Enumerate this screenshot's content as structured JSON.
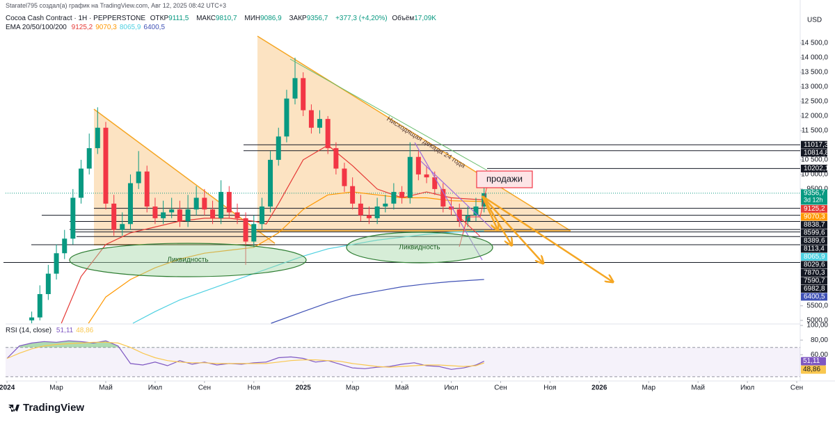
{
  "header": {
    "author_line": "Staratel795 создал(а) график на TradingView.com, Авг 12, 2025 08:42 UTC+3"
  },
  "chart_data": [
    {
      "type": "candlestick",
      "title": "Cocoa Cash Contract · 1H · PEPPERSTONE",
      "quote": [
        {
          "name": "ОТКР",
          "value": "9111,5"
        },
        {
          "name": "МАКС",
          "value": "9810,7"
        },
        {
          "name": "МИН",
          "value": "9086,9"
        },
        {
          "name": "ЗАКР",
          "value": "9356,7"
        }
      ],
      "change": "+377,3 (+4,20%)",
      "volume": {
        "name": "Объём",
        "value": "17,09K"
      },
      "indicator_label": "EMA 20/50/100/200",
      "currency": "USD",
      "up_color": "#089981",
      "down_color": "#f23645",
      "x": [
        1,
        1.33,
        1.67,
        2,
        2.33,
        2.67,
        3,
        3.33,
        3.67,
        4,
        4.33,
        4.67,
        5,
        5.33,
        5.67,
        6,
        6.33,
        6.67,
        7,
        7.33,
        7.67,
        8,
        8.33,
        8.67,
        9,
        9.33,
        9.67,
        10,
        10.33,
        10.67,
        11,
        11.33,
        11.67,
        12,
        12.33,
        12.67,
        13,
        13.33,
        13.67,
        14,
        14.33,
        14.67,
        15,
        15.33,
        15.67,
        16,
        16.33,
        16.67,
        17,
        17.33,
        17.67,
        18,
        18.33,
        18.67,
        19,
        19.33
      ],
      "open": [
        5000,
        5100,
        5900,
        6600,
        7300,
        7800,
        9200,
        10200,
        10900,
        11600,
        9000,
        8100,
        8300,
        9700,
        10100,
        8900,
        8500,
        8700,
        8800,
        8400,
        8800,
        9200,
        8800,
        8500,
        9400,
        8700,
        8500,
        7700,
        8300,
        8900,
        10500,
        11300,
        12600,
        13300,
        12200,
        11600,
        11900,
        10900,
        10200,
        9600,
        9000,
        8600,
        8500,
        8900,
        9000,
        9400,
        9200,
        10600,
        10000,
        9900,
        9500,
        8900,
        8800,
        8400,
        8600,
        8900
      ],
      "high": [
        5300,
        6200,
        6900,
        7600,
        8100,
        9500,
        10500,
        11400,
        12300,
        11800,
        9300,
        8700,
        10000,
        10800,
        10300,
        9200,
        9100,
        9200,
        9100,
        9300,
        9600,
        9500,
        9100,
        9800,
        9600,
        9000,
        8700,
        8600,
        9200,
        10800,
        11600,
        12900,
        14000,
        13500,
        12400,
        12200,
        12000,
        11100,
        10400,
        9900,
        9300,
        8900,
        9200,
        9300,
        9700,
        9600,
        11100,
        10800,
        10300,
        10100,
        9700,
        9200,
        9000,
        8900,
        9200,
        9600
      ],
      "low": [
        4900,
        5000,
        5700,
        6400,
        7100,
        7600,
        9000,
        10000,
        10700,
        8800,
        7900,
        7900,
        8100,
        9500,
        8700,
        8300,
        8300,
        8500,
        8200,
        8200,
        8600,
        8600,
        8300,
        8300,
        8500,
        8300,
        6900,
        7500,
        8100,
        8700,
        10300,
        11100,
        12400,
        12000,
        11400,
        11400,
        10700,
        10000,
        9400,
        8800,
        8400,
        8300,
        8300,
        8700,
        8800,
        9000,
        9000,
        9800,
        9700,
        9300,
        8700,
        8600,
        8200,
        8200,
        8400,
        8700
      ],
      "close": [
        5100,
        5900,
        6600,
        7300,
        7800,
        9200,
        10200,
        10900,
        11600,
        9000,
        8100,
        8300,
        9700,
        10100,
        8900,
        8500,
        8700,
        8800,
        8400,
        8800,
        9200,
        8800,
        8500,
        9400,
        8700,
        8500,
        7700,
        8300,
        8900,
        10500,
        11300,
        12600,
        13300,
        12200,
        11600,
        11900,
        10900,
        10200,
        9600,
        9000,
        8600,
        8500,
        8900,
        9000,
        9400,
        9200,
        10600,
        10000,
        9900,
        9500,
        8900,
        8800,
        8400,
        8600,
        8900,
        9356.7
      ],
      "series": [
        {
          "color": "#e53935",
          "x": [
            2.2,
            3,
            4,
            5,
            6,
            7,
            8,
            9,
            10,
            10.5,
            11,
            12,
            13,
            14,
            15,
            16,
            17,
            18,
            19.33
          ],
          "values": [
            4900,
            6500,
            7600,
            8000,
            8200,
            8400,
            8500,
            8500,
            8400,
            8300,
            9000,
            10500,
            11000,
            10300,
            9500,
            9200,
            9400,
            9200,
            9125.2
          ],
          "value_label": "9125,2"
        },
        {
          "color": "#ff9800",
          "x": [
            3.3,
            4,
            5,
            6,
            7,
            8,
            9,
            10,
            11,
            12,
            13,
            14,
            15,
            16,
            17,
            18,
            19.33
          ],
          "values": [
            4900,
            5800,
            6400,
            6800,
            7100,
            7300,
            7400,
            7500,
            8000,
            8800,
            9300,
            9400,
            9300,
            9200,
            9200,
            9100,
            9070.3
          ],
          "value_label": "9070,3"
        },
        {
          "color": "#4dd0e1",
          "x": [
            5.1,
            6,
            7,
            8,
            9,
            10,
            11,
            12,
            13,
            14,
            15,
            16,
            17,
            18,
            19.33
          ],
          "values": [
            4900,
            5300,
            5700,
            6000,
            6300,
            6600,
            6900,
            7200,
            7450,
            7600,
            7750,
            7850,
            7950,
            8020,
            8065.9
          ],
          "value_label": "8065,9"
        },
        {
          "color": "#3f51b5",
          "x": [
            10.7,
            12,
            13,
            14,
            15,
            16,
            17,
            18,
            19.33
          ],
          "values": [
            4900,
            5300,
            5600,
            5850,
            6000,
            6150,
            6250,
            6330,
            6400.5
          ],
          "value_label": "6400,5"
        }
      ],
      "last": {
        "value": 9356.7,
        "label": "9356,7",
        "countdown": "3d 12h",
        "color": "#089981"
      },
      "levels": [
        {
          "value": 11017.3,
          "label": "11017,3"
        },
        {
          "value": 10814.8,
          "label": "10814,8"
        },
        {
          "value": 10202.1,
          "label": "10202,1"
        },
        {
          "value": 8838.7,
          "label": "8838,7"
        },
        {
          "value": 8599.6,
          "label": "8599,6"
        },
        {
          "value": 8389.6,
          "label": "8389,6"
        },
        {
          "value": 8113.4,
          "label": "8113,4"
        },
        {
          "value": 8029.6,
          "label": "8029,6"
        },
        {
          "value": 7870.3,
          "label": "7870,3"
        },
        {
          "value": 7590.7,
          "label": "7590,7"
        },
        {
          "value": 6982.8,
          "label": "6982,8"
        }
      ],
      "xlim": [
        -0.06,
        32.14
      ],
      "xticks": [
        {
          "value": 0,
          "label": "2024"
        },
        {
          "value": 2,
          "label": "Мар"
        },
        {
          "value": 4,
          "label": "Май"
        },
        {
          "value": 6,
          "label": "Июл"
        },
        {
          "value": 8,
          "label": "Сен"
        },
        {
          "value": 10,
          "label": "Ноя"
        },
        {
          "value": 12,
          "label": "2025"
        },
        {
          "value": 14,
          "label": "Мар"
        },
        {
          "value": 16,
          "label": "Май"
        },
        {
          "value": 18,
          "label": "Июл"
        },
        {
          "value": 20,
          "label": "Сен"
        },
        {
          "value": 22,
          "label": "Ноя"
        },
        {
          "value": 24,
          "label": "2026"
        },
        {
          "value": 26,
          "label": "Мар"
        },
        {
          "value": 28,
          "label": "Май"
        },
        {
          "value": 30,
          "label": "Июл"
        },
        {
          "value": 32,
          "label": "Сен"
        }
      ],
      "ylim": [
        4900,
        15500
      ],
      "yticks": [
        {
          "value": 5000,
          "label": "5000,0"
        },
        {
          "value": 5500,
          "label": "5500,0"
        },
        {
          "value": 9500,
          "label": "9500,0"
        },
        {
          "value": 10000,
          "label": "10 000,0"
        },
        {
          "value": 10500,
          "label": "10 500,0"
        },
        {
          "value": 11500,
          "label": "11 500,0"
        },
        {
          "value": 12000,
          "label": "12 000,0"
        },
        {
          "value": 12500,
          "label": "12 500,0"
        },
        {
          "value": 13000,
          "label": "13 000,0"
        },
        {
          "value": 13500,
          "label": "13 500,0"
        },
        {
          "value": 14000,
          "label": "14 000,0"
        },
        {
          "value": 14500,
          "label": "14 500,0"
        }
      ]
    },
    {
      "type": "line",
      "title": "RSI (14, close)",
      "x": [
        0,
        0.5,
        1,
        1.5,
        2,
        2.5,
        3,
        3.5,
        4,
        4.5,
        5,
        5.5,
        6,
        6.5,
        7,
        7.5,
        8,
        8.5,
        9,
        9.5,
        10,
        10.5,
        11,
        11.5,
        12,
        12.5,
        13,
        13.5,
        14,
        14.5,
        15,
        15.5,
        16,
        16.5,
        17,
        17.5,
        18,
        18.5,
        19,
        19.33
      ],
      "series": [
        {
          "color": "#7e57c2",
          "values": [
            55,
            72,
            76,
            78,
            77,
            79,
            78,
            76,
            79,
            72,
            48,
            46,
            50,
            45,
            52,
            47,
            50,
            46,
            48,
            47,
            49,
            50,
            56,
            57,
            55,
            50,
            52,
            47,
            42,
            41,
            43,
            44,
            47,
            49,
            45,
            44,
            40,
            42,
            46,
            51.11
          ],
          "value_label": "51,11"
        },
        {
          "color": "#f9c74f",
          "values": [
            55,
            62,
            68,
            72,
            74,
            75,
            76,
            77,
            77,
            76,
            70,
            62,
            56,
            52,
            50,
            49,
            49,
            48,
            48,
            48,
            48,
            48,
            50,
            52,
            53,
            53,
            52,
            51,
            48,
            46,
            44,
            43,
            44,
            45,
            46,
            46,
            45,
            44,
            45,
            48.86
          ],
          "value_label": "48,86"
        }
      ],
      "bands": [
        70,
        30
      ],
      "overbought_color": "#4caf50",
      "ylim": [
        27,
        102
      ],
      "yticks": [
        {
          "value": 100,
          "label": "100,00"
        },
        {
          "value": 80,
          "label": "80,00"
        },
        {
          "value": 60,
          "label": "60,00"
        }
      ]
    }
  ],
  "annotations": {
    "descending": "Нисходящая декада 24 года",
    "sell": "продажи",
    "liquidity": [
      "Ликвидность",
      "Ликвидность"
    ]
  },
  "footer": {
    "logo": "TradingView"
  }
}
